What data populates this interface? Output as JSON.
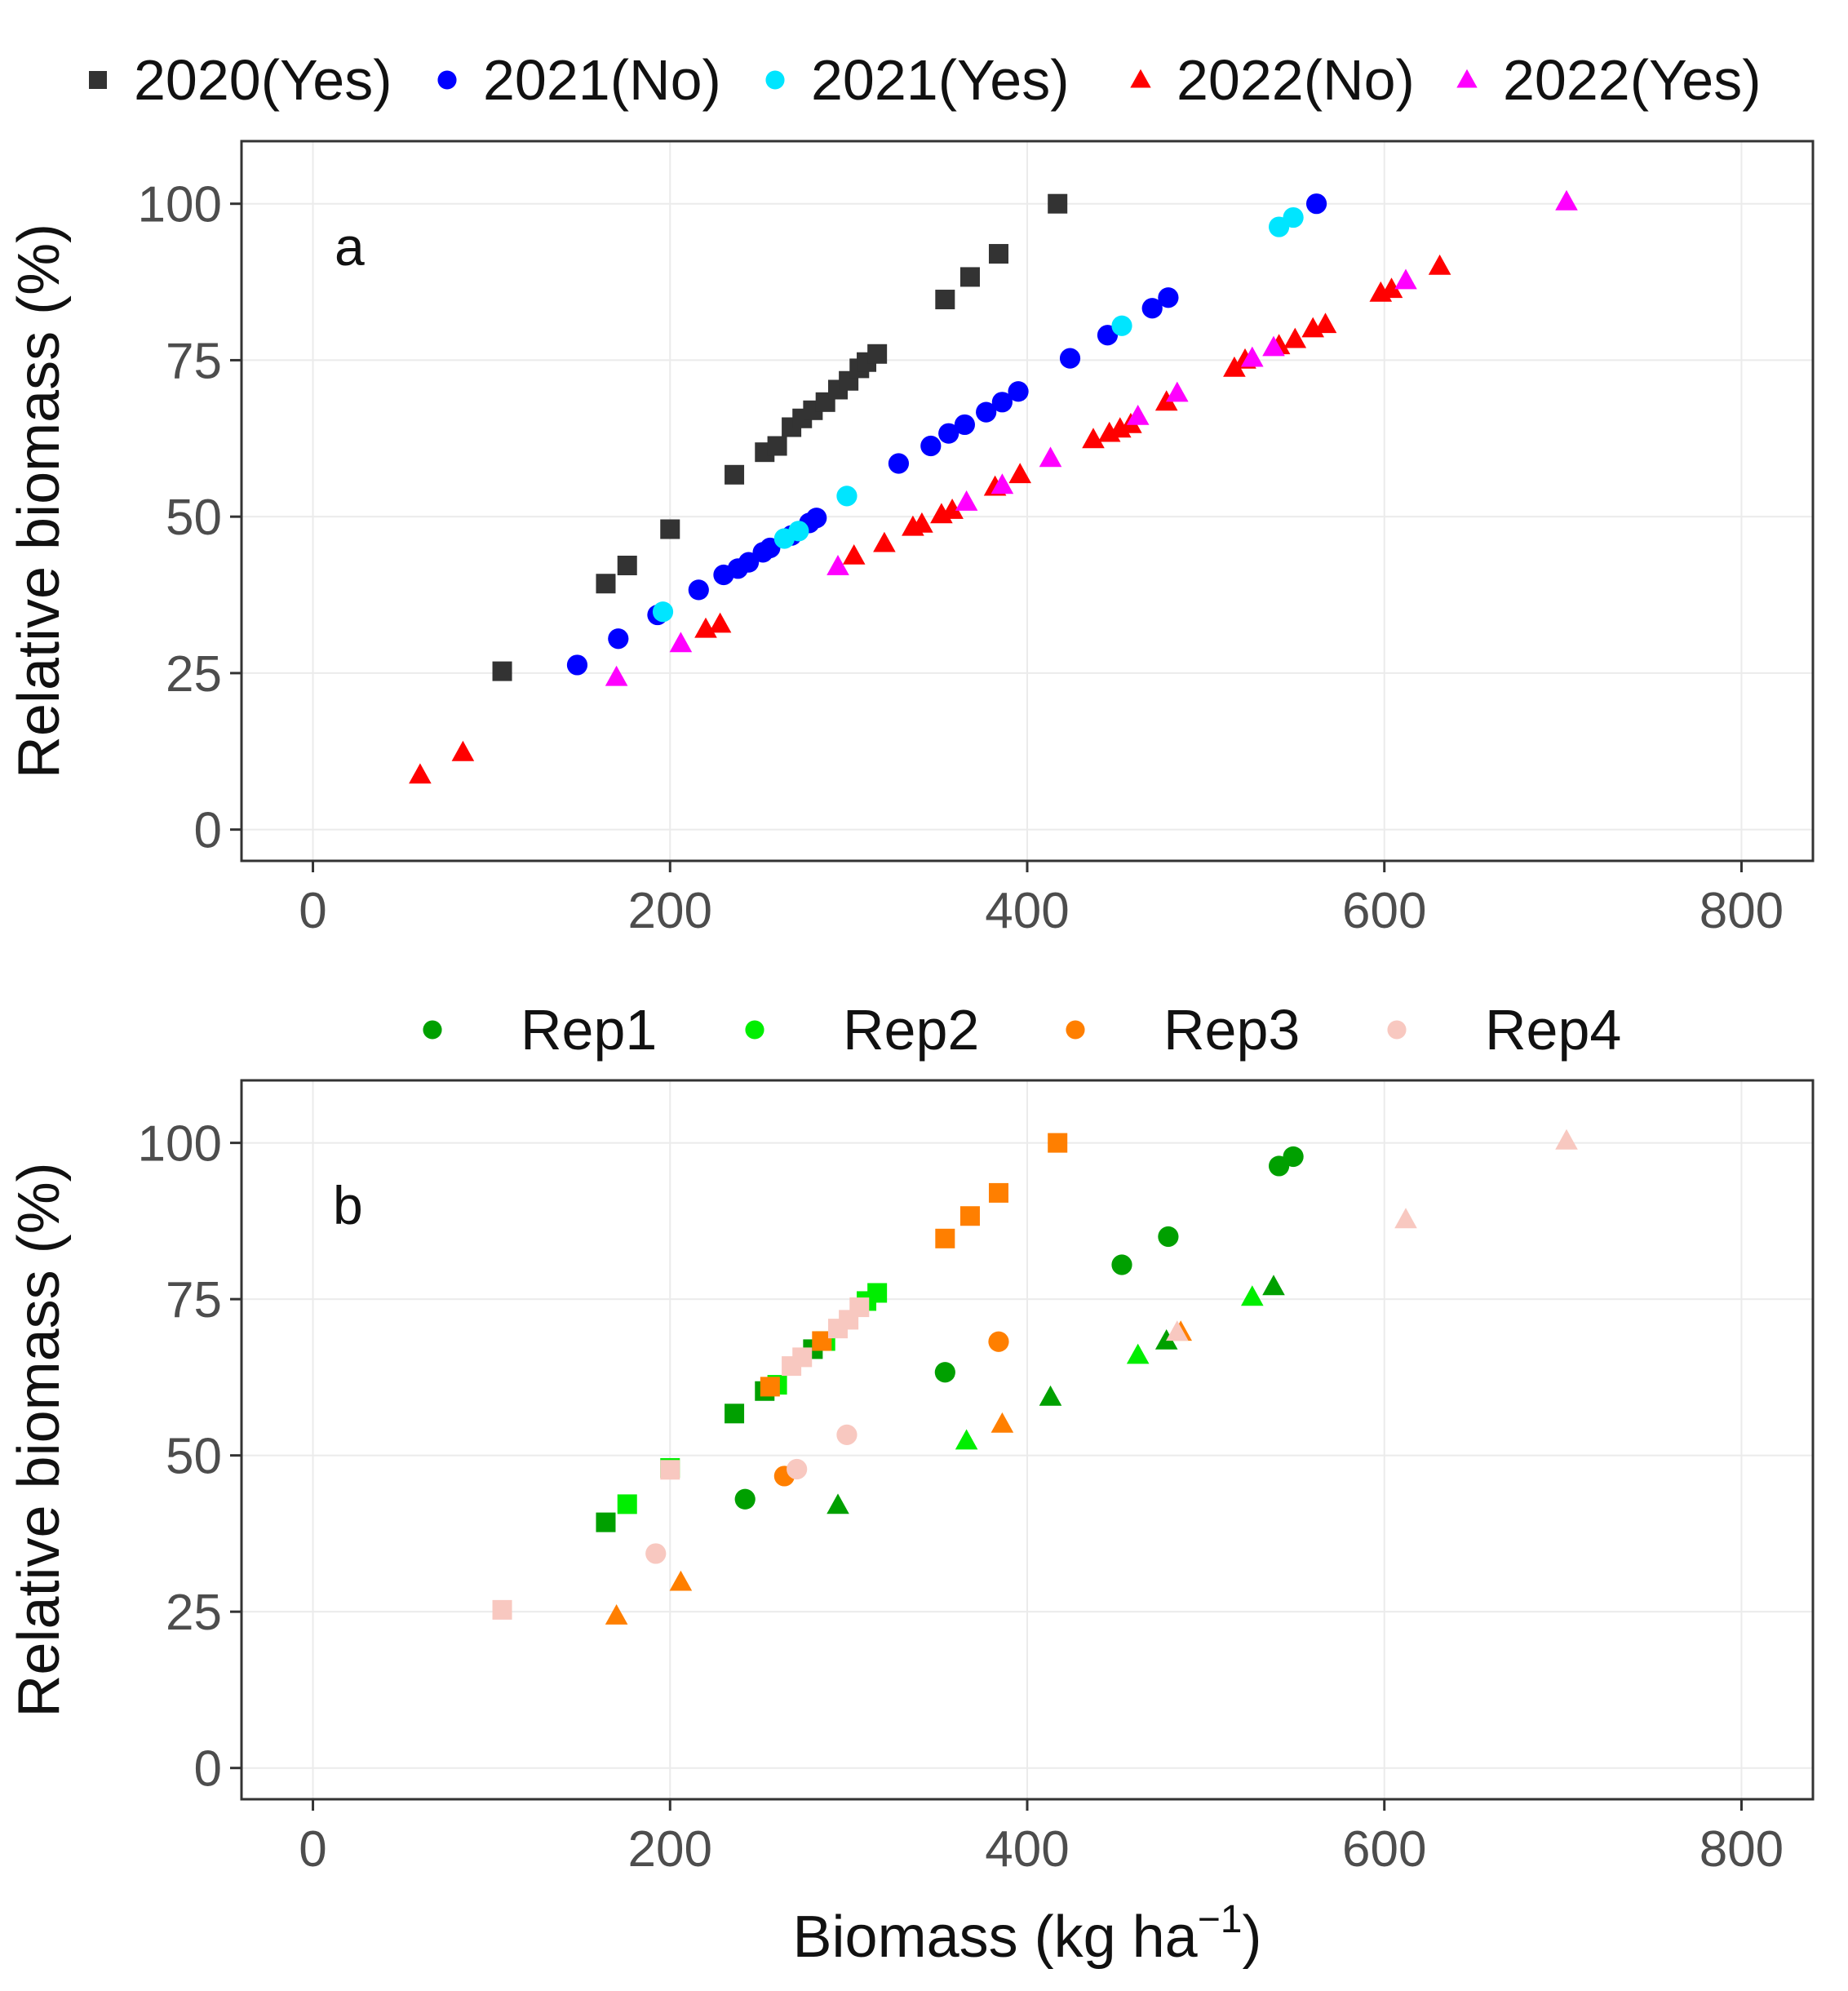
{
  "chart_data": [
    {
      "type": "scatter",
      "panel_label": "a",
      "xlabel": "",
      "ylabel": "Relative biomass (%)",
      "xlim": [
        -40,
        840
      ],
      "ylim": [
        -5,
        110
      ],
      "xticks": [
        0,
        200,
        400,
        600,
        800
      ],
      "yticks": [
        0,
        25,
        50,
        75,
        100
      ],
      "xtick_labels": [
        "0",
        "200",
        "400",
        "600",
        "800"
      ],
      "ytick_labels": [
        "0",
        "25",
        "50",
        "75",
        "100"
      ],
      "grid": true,
      "legend_position": "top",
      "series": [
        {
          "name": "2020(Yes)",
          "marker": "square",
          "color": "#333333",
          "points": [
            [
              106,
              25.3
            ],
            [
              164,
              39.3
            ],
            [
              176,
              42.2
            ],
            [
              200,
              48
            ],
            [
              236,
              56.7
            ],
            [
              253,
              60.3
            ],
            [
              260,
              61.3
            ],
            [
              268,
              64.3
            ],
            [
              274,
              65.7
            ],
            [
              280,
              67
            ],
            [
              287,
              68.3
            ],
            [
              294,
              70.3
            ],
            [
              300,
              71.7
            ],
            [
              306,
              73.7
            ],
            [
              310,
              74.7
            ],
            [
              316,
              76
            ],
            [
              354,
              84.7
            ],
            [
              368,
              88.3
            ],
            [
              384,
              92
            ],
            [
              417,
              100
            ]
          ]
        },
        {
          "name": "2021(No)",
          "marker": "circle",
          "color": "#0000ff",
          "points": [
            [
              148,
              26.3
            ],
            [
              171,
              30.5
            ],
            [
              193,
              34.3
            ],
            [
              216,
              38.3
            ],
            [
              230,
              40.7
            ],
            [
              238,
              41.7
            ],
            [
              244,
              42.7
            ],
            [
              252,
              44.3
            ],
            [
              256,
              45
            ],
            [
              268,
              47
            ],
            [
              278,
              49
            ],
            [
              282,
              49.8
            ],
            [
              328,
              58.5
            ],
            [
              346,
              61.3
            ],
            [
              356,
              63.3
            ],
            [
              365,
              64.7
            ],
            [
              377,
              66.7
            ],
            [
              386,
              68.3
            ],
            [
              395,
              70
            ],
            [
              424,
              75.3
            ],
            [
              445,
              79
            ],
            [
              470,
              83.3
            ],
            [
              479,
              85
            ],
            [
              562,
              100
            ]
          ]
        },
        {
          "name": "2021(Yes)",
          "marker": "circle",
          "color": "#00e5ff",
          "points": [
            [
              196,
              34.8
            ],
            [
              264,
              46.5
            ],
            [
              272,
              47.7
            ],
            [
              299,
              53.3
            ],
            [
              453,
              80.5
            ],
            [
              541,
              96.3
            ],
            [
              549,
              97.8
            ]
          ]
        },
        {
          "name": "2022(No)",
          "marker": "triangle",
          "color": "#ff0000",
          "points": [
            [
              60,
              8.7
            ],
            [
              84,
              12.3
            ],
            [
              220,
              32
            ],
            [
              228,
              32.8
            ],
            [
              303,
              43.7
            ],
            [
              320,
              45.7
            ],
            [
              336,
              48.3
            ],
            [
              341,
              48.8
            ],
            [
              352,
              50.3
            ],
            [
              358,
              51
            ],
            [
              382,
              54.7
            ],
            [
              396,
              56.7
            ],
            [
              437,
              62.3
            ],
            [
              446,
              63.3
            ],
            [
              452,
              64
            ],
            [
              458,
              64.7
            ],
            [
              478,
              68.3
            ],
            [
              516,
              73.7
            ],
            [
              522,
              75
            ],
            [
              541,
              77.3
            ],
            [
              550,
              78.3
            ],
            [
              560,
              80
            ],
            [
              567,
              80.7
            ],
            [
              598,
              85.7
            ],
            [
              604,
              86.3
            ],
            [
              631,
              90
            ]
          ]
        },
        {
          "name": "2022(Yes)",
          "marker": "triangle",
          "color": "#ff00ff",
          "points": [
            [
              170,
              24.3
            ],
            [
              206,
              29.7
            ],
            [
              294,
              42
            ],
            [
              366,
              52.3
            ],
            [
              386,
              55
            ],
            [
              413,
              59.3
            ],
            [
              462,
              66
            ],
            [
              484,
              69.7
            ],
            [
              526,
              75.3
            ],
            [
              538,
              77
            ],
            [
              612,
              87.7
            ],
            [
              702,
              100.3
            ]
          ]
        }
      ]
    },
    {
      "type": "scatter",
      "panel_label": "b",
      "xlabel": "Biomass (kg ha",
      "xlabel_superscript": "−1",
      "xlabel_close": ")",
      "ylabel": "Relative biomass (%)",
      "xlim": [
        -40,
        840
      ],
      "ylim": [
        -5,
        110
      ],
      "xticks": [
        0,
        200,
        400,
        600,
        800
      ],
      "yticks": [
        0,
        25,
        50,
        75,
        100
      ],
      "xtick_labels": [
        "0",
        "200",
        "400",
        "600",
        "800"
      ],
      "ytick_labels": [
        "0",
        "25",
        "50",
        "75",
        "100"
      ],
      "grid": true,
      "legend_position": "top",
      "series": [
        {
          "name": "Rep1",
          "legend_marker": "circle",
          "color": "#00a000",
          "points": [
            [
              164,
              39.3,
              "square"
            ],
            [
              236,
              56.7,
              "square"
            ],
            [
              253,
              60.3,
              "square"
            ],
            [
              280,
              67,
              "square"
            ],
            [
              242,
              43,
              "circle"
            ],
            [
              354,
              63.3,
              "circle"
            ],
            [
              453,
              80.5,
              "circle"
            ],
            [
              479,
              85,
              "circle"
            ],
            [
              541,
              96.3,
              "circle"
            ],
            [
              549,
              97.8,
              "circle"
            ],
            [
              294,
              42,
              "triangle"
            ],
            [
              413,
              59.3,
              "triangle"
            ],
            [
              478,
              68.3,
              "triangle"
            ],
            [
              538,
              77,
              "triangle"
            ]
          ]
        },
        {
          "name": "Rep2",
          "legend_marker": "circle",
          "color": "#00ee00",
          "points": [
            [
              176,
              42.2,
              "square"
            ],
            [
              200,
              48,
              "square"
            ],
            [
              260,
              61.3,
              "square"
            ],
            [
              287,
              68.3,
              "square"
            ],
            [
              316,
              76,
              "square"
            ],
            [
              310,
              74.7,
              "square"
            ],
            [
              366,
              52.3,
              "triangle"
            ],
            [
              462,
              66,
              "triangle"
            ],
            [
              526,
              75.3,
              "triangle"
            ]
          ]
        },
        {
          "name": "Rep3",
          "legend_marker": "circle",
          "color": "#ff7f00",
          "points": [
            [
              256,
              61,
              "square"
            ],
            [
              285,
              68.3,
              "square"
            ],
            [
              354,
              84.7,
              "square"
            ],
            [
              368,
              88.3,
              "square"
            ],
            [
              384,
              92,
              "square"
            ],
            [
              417,
              100,
              "square"
            ],
            [
              264,
              46.7,
              "circle"
            ],
            [
              384,
              68.2,
              "circle"
            ],
            [
              170,
              24.3,
              "triangle"
            ],
            [
              206,
              29.7,
              "triangle"
            ],
            [
              386,
              55,
              "triangle"
            ],
            [
              486,
              69.7,
              "triangle"
            ]
          ]
        },
        {
          "name": "Rep4",
          "legend_marker": "circle",
          "color": "#f8c8c0",
          "points": [
            [
              106,
              25.3,
              "square"
            ],
            [
              200,
              47.7,
              "square"
            ],
            [
              268,
              64.3,
              "square"
            ],
            [
              274,
              65.7,
              "square"
            ],
            [
              294,
              70.3,
              "square"
            ],
            [
              300,
              71.7,
              "square"
            ],
            [
              306,
              73.7,
              "square"
            ],
            [
              192,
              34.3,
              "circle"
            ],
            [
              271,
              47.8,
              "circle"
            ],
            [
              299,
              53.3,
              "circle"
            ],
            [
              484,
              69.7,
              "triangle"
            ],
            [
              612,
              87.7,
              "triangle"
            ],
            [
              702,
              100.3,
              "triangle"
            ]
          ]
        }
      ]
    }
  ]
}
